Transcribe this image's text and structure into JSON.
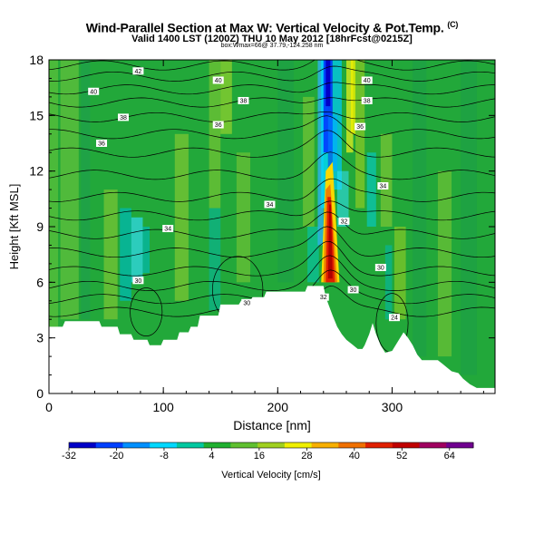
{
  "chart_data": {
    "type": "heatmap",
    "title": "Wind-Parallel Section at Max W: Vertical Velocity & Pot.Temp.",
    "title_mark": "(C)",
    "subtitle": "Valid 1400 LST (1200Z) THU 10 May 2012 [18hrFcst@0215Z]",
    "subtitle2": "box:Wmax=66@ 37.79,-124.258 nm",
    "xlabel": "Distance [nm]",
    "ylabel": "Height [Kft MSL]",
    "xlim": [
      0,
      390
    ],
    "ylim": [
      0,
      18
    ],
    "xticks": [
      0,
      100,
      200,
      300
    ],
    "yticks": [
      0,
      3,
      6,
      9,
      12,
      15,
      18
    ],
    "colorbar": {
      "label": "Vertical Velocity [cm/s]",
      "tick_labels": [
        "-32",
        "-20",
        "-8",
        "4",
        "16",
        "28",
        "40",
        "52",
        "64"
      ],
      "range": [
        -32,
        70
      ],
      "colors": [
        "#0000c8",
        "#0040ff",
        "#0090ff",
        "#00d8ff",
        "#00c8a0",
        "#20b030",
        "#60c030",
        "#a0d020",
        "#f0f000",
        "#f8b000",
        "#f07000",
        "#e02000",
        "#c00000",
        "#a00060",
        "#700090"
      ]
    },
    "contour_labels": [
      {
        "text": "42",
        "x": 78,
        "h": 17.4
      },
      {
        "text": "40",
        "x": 39,
        "h": 16.3
      },
      {
        "text": "38",
        "x": 65,
        "h": 14.9
      },
      {
        "text": "36",
        "x": 46,
        "h": 13.5
      },
      {
        "text": "40",
        "x": 148,
        "h": 16.9
      },
      {
        "text": "38",
        "x": 170,
        "h": 15.8
      },
      {
        "text": "36",
        "x": 148,
        "h": 14.5
      },
      {
        "text": "40",
        "x": 278,
        "h": 16.9
      },
      {
        "text": "38",
        "x": 278,
        "h": 15.8
      },
      {
        "text": "36",
        "x": 272,
        "h": 14.4
      },
      {
        "text": "34",
        "x": 292,
        "h": 11.2
      },
      {
        "text": "34",
        "x": 193,
        "h": 10.2
      },
      {
        "text": "34",
        "x": 104,
        "h": 8.9
      },
      {
        "text": "32",
        "x": 258,
        "h": 9.3
      },
      {
        "text": "30",
        "x": 290,
        "h": 6.8
      },
      {
        "text": "30",
        "x": 78,
        "h": 6.1
      },
      {
        "text": "30",
        "x": 173,
        "h": 4.9
      },
      {
        "text": "32",
        "x": 240,
        "h": 5.2
      },
      {
        "text": "30",
        "x": 266,
        "h": 5.6
      },
      {
        "text": "24",
        "x": 302,
        "h": 4.1
      }
    ],
    "terrain_top_kft": [
      [
        0,
        3.6
      ],
      [
        12,
        3.6
      ],
      [
        14,
        3.9
      ],
      [
        44,
        3.9
      ],
      [
        46,
        3.6
      ],
      [
        60,
        3.6
      ],
      [
        62,
        3.2
      ],
      [
        72,
        3.2
      ],
      [
        74,
        2.9
      ],
      [
        86,
        2.9
      ],
      [
        88,
        2.6
      ],
      [
        98,
        2.6
      ],
      [
        100,
        2.9
      ],
      [
        112,
        2.9
      ],
      [
        114,
        3.3
      ],
      [
        122,
        3.3
      ],
      [
        124,
        3.6
      ],
      [
        130,
        3.6
      ],
      [
        132,
        4.2
      ],
      [
        148,
        4.2
      ],
      [
        150,
        4.8
      ],
      [
        166,
        4.8
      ],
      [
        168,
        5.0
      ],
      [
        176,
        5.0
      ],
      [
        178,
        5.2
      ],
      [
        188,
        5.2
      ],
      [
        190,
        5.5
      ],
      [
        224,
        5.5
      ],
      [
        226,
        5.8
      ],
      [
        240,
        5.8
      ],
      [
        242,
        5.2
      ],
      [
        248,
        4.2
      ],
      [
        252,
        3.6
      ],
      [
        256,
        3.2
      ],
      [
        260,
        2.9
      ],
      [
        266,
        2.6
      ],
      [
        270,
        2.4
      ],
      [
        274,
        2.4
      ],
      [
        276,
        2.6
      ],
      [
        280,
        3.2
      ],
      [
        283,
        3.8
      ],
      [
        286,
        3.2
      ],
      [
        290,
        2.6
      ],
      [
        294,
        2.2
      ],
      [
        300,
        2.3
      ],
      [
        306,
        2.9
      ],
      [
        310,
        3.3
      ],
      [
        314,
        3.0
      ],
      [
        318,
        2.6
      ],
      [
        322,
        2.1
      ],
      [
        326,
        1.8
      ],
      [
        340,
        1.8
      ],
      [
        344,
        1.6
      ],
      [
        348,
        1.4
      ],
      [
        352,
        1.2
      ],
      [
        358,
        1.1
      ],
      [
        362,
        0.8
      ],
      [
        368,
        0.5
      ],
      [
        374,
        0.3
      ],
      [
        380,
        0.3
      ],
      [
        390,
        0.3
      ]
    ]
  }
}
